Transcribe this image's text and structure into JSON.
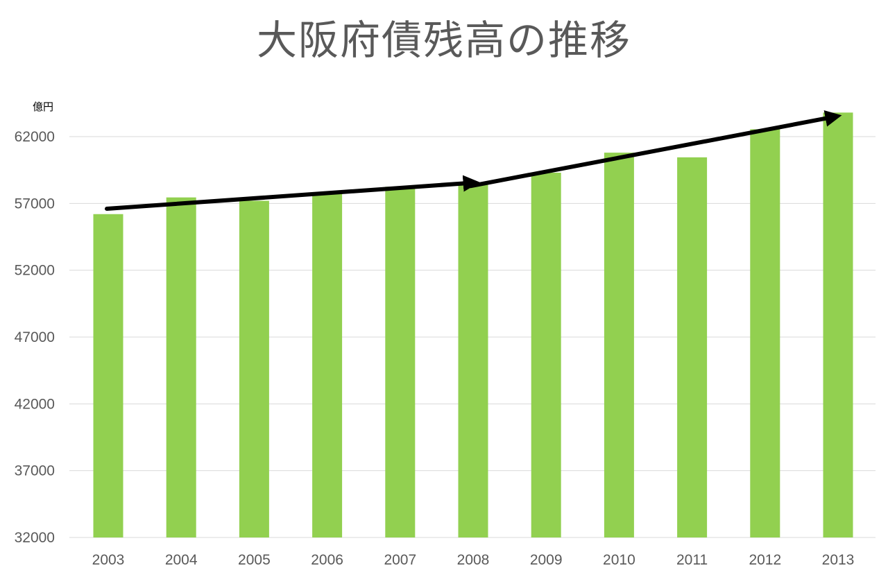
{
  "chart_data": {
    "type": "bar",
    "title": "大阪府債残高の推移",
    "ylabel": "億円",
    "xlabel": "",
    "categories": [
      "2003",
      "2004",
      "2005",
      "2006",
      "2007",
      "2008",
      "2009",
      "2010",
      "2011",
      "2012",
      "2013"
    ],
    "values": [
      56200,
      57450,
      57200,
      57800,
      58250,
      58400,
      59300,
      60800,
      60450,
      62550,
      63800
    ],
    "ylim": [
      32000,
      64000
    ],
    "yticks": [
      "32000",
      "37000",
      "42000",
      "47000",
      "52000",
      "57000",
      "62000"
    ],
    "ytick_values": [
      32000,
      37000,
      42000,
      47000,
      52000,
      57000,
      62000
    ],
    "grid": true,
    "bar_color": "#92d050",
    "annotations": [
      {
        "type": "trend-arrow",
        "from": {
          "x": "2003",
          "y": 56600
        },
        "to": {
          "x": "2008",
          "y": 58550
        }
      },
      {
        "type": "trend-arrow",
        "from": {
          "x": "2008",
          "y": 58300
        },
        "to": {
          "x": "2013",
          "y": 63500
        }
      }
    ]
  }
}
